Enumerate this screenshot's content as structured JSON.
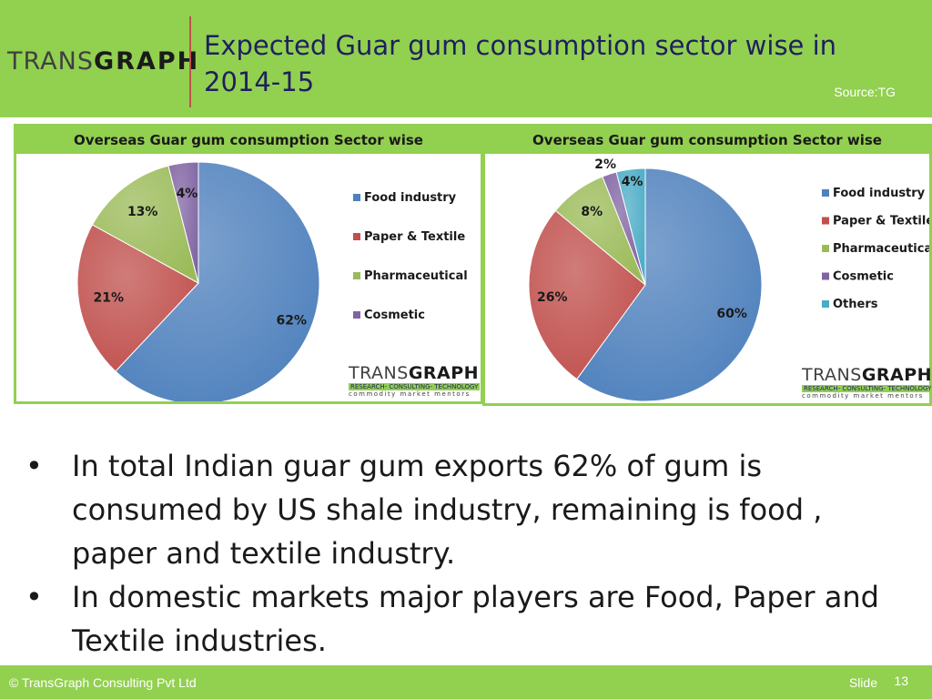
{
  "header": {
    "logo_light": "TRANS",
    "logo_bold": "GRAPH",
    "title": "Expected Guar gum consumption sector wise in 2014-15",
    "source": "Source:TG"
  },
  "chart_data": [
    {
      "type": "pie",
      "title": "Overseas Guar gum consumption Sector wise",
      "categories": [
        "Food industry",
        "Paper & Textile",
        "Pharmaceutical",
        "Cosmetic"
      ],
      "values": [
        62,
        21,
        13,
        4
      ],
      "labels": [
        "62%",
        "21%",
        "13%",
        "4%"
      ],
      "colors": [
        "#4f81bd",
        "#c0504d",
        "#9bbb59",
        "#8064a2"
      ],
      "legend_position": "right"
    },
    {
      "type": "pie",
      "title": "Overseas Guar gum consumption Sector wise",
      "categories": [
        "Food industry",
        "Paper & Textile",
        "Pharmaceutical",
        "Cosmetic",
        "Others"
      ],
      "values": [
        60,
        26,
        8,
        2,
        4
      ],
      "labels": [
        "60%",
        "26%",
        "8%",
        "2%",
        "4%"
      ],
      "colors": [
        "#4f81bd",
        "#c0504d",
        "#9bbb59",
        "#8064a2",
        "#4bacc6"
      ],
      "legend_position": "right"
    }
  ],
  "chart_logo": {
    "light": "TRANS",
    "bold": "GRAPH",
    "tagline": "RESEARCH- CONSULTING- TECHNOLOGY",
    "subline": "commodity market mentors"
  },
  "bullets": [
    "In total Indian guar gum exports 62% of gum is consumed by US shale industry, remaining is food , paper and textile industry.",
    "In domestic markets major players are Food, Paper and Textile industries."
  ],
  "footer": {
    "copyright": "© TransGraph Consulting Pvt Ltd",
    "slide_label": "Slide",
    "slide_number": "13"
  }
}
